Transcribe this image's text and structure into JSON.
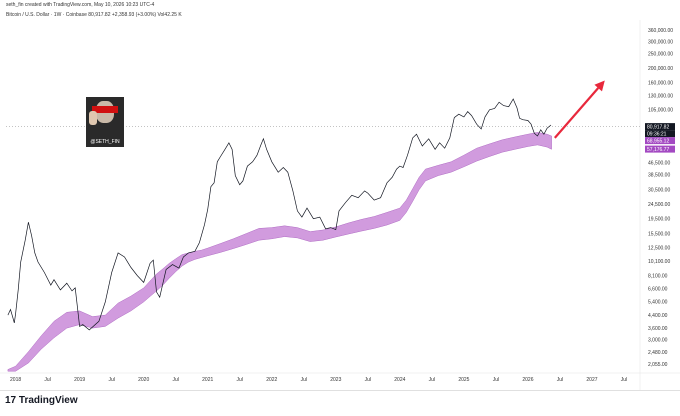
{
  "header": {
    "credit": "seth_fin created with TradingView.com, May 10, 2026 10:23 UTC-4",
    "symbol": "Bitcoin / U.S. Dollar · 1W · Coinbase 80,917.82 +2,358.93 (+3.00%) Vol42.25 K"
  },
  "avatar": {
    "label": "@SETH_FIN"
  },
  "footer": {
    "logo": "TradingView"
  },
  "colors": {
    "price": "#131722",
    "band": "#c98ad8",
    "arrow": "#e8283c",
    "price_label": "#131722",
    "band_label": "#a349c2"
  },
  "chart_data": {
    "type": "line",
    "title": "",
    "y_scale": "log",
    "x_ticks": [
      "2018",
      "Jul",
      "2019",
      "Jul",
      "2020",
      "Jul",
      "2021",
      "Jul",
      "2022",
      "Jul",
      "2023",
      "Jul",
      "2024",
      "Jul",
      "2025",
      "Jul",
      "2026",
      "Jul",
      "2027",
      "Jul"
    ],
    "y_ticks": [
      2055,
      2480,
      3000,
      3600,
      4400,
      5400,
      6600,
      8100,
      10100,
      12500,
      15500,
      19500,
      24500,
      30500,
      38500,
      46500,
      76000,
      105000,
      130000,
      160000,
      200000,
      250000,
      300000,
      360000
    ],
    "y_tick_labels": [
      "2,055.00",
      "2,480.00",
      "3,000.00",
      "3,600.00",
      "4,400.00",
      "5,400.00",
      "6,600.00",
      "8,100.00",
      "10,100.00",
      "12,500.00",
      "15,500.00",
      "19,500.00",
      "24,500.00",
      "30,500.00",
      "38,500.00",
      "46,500.00",
      "76,000.00",
      "105,000.00",
      "130,000.00",
      "160,000.00",
      "200,000.00",
      "250,000.00",
      "300,000.00",
      "360,000.00"
    ],
    "ylim": [
      1800,
      420000
    ],
    "xlim": [
      2017.85,
      2027.75
    ],
    "price_series": {
      "x": [
        2017.88,
        2017.92,
        2017.96,
        2017.98,
        2018.0,
        2018.04,
        2018.08,
        2018.15,
        2018.2,
        2018.25,
        2018.3,
        2018.35,
        2018.45,
        2018.55,
        2018.6,
        2018.7,
        2018.8,
        2018.88,
        2018.93,
        2018.96,
        2019.0,
        2019.05,
        2019.15,
        2019.3,
        2019.4,
        2019.5,
        2019.6,
        2019.7,
        2019.8,
        2019.9,
        2020.0,
        2020.1,
        2020.15,
        2020.2,
        2020.25,
        2020.35,
        2020.45,
        2020.55,
        2020.62,
        2020.7,
        2020.8,
        2020.87,
        2020.95,
        2021.0,
        2021.05,
        2021.1,
        2021.15,
        2021.2,
        2021.27,
        2021.33,
        2021.38,
        2021.43,
        2021.5,
        2021.55,
        2021.62,
        2021.7,
        2021.77,
        2021.83,
        2021.87,
        2021.92,
        2022.0,
        2022.1,
        2022.18,
        2022.25,
        2022.33,
        2022.4,
        2022.47,
        2022.55,
        2022.65,
        2022.75,
        2022.84,
        2022.92,
        2023.0,
        2023.05,
        2023.15,
        2023.25,
        2023.35,
        2023.45,
        2023.5,
        2023.6,
        2023.7,
        2023.8,
        2023.88,
        2023.95,
        2024.0,
        2024.05,
        2024.12,
        2024.2,
        2024.26,
        2024.35,
        2024.45,
        2024.55,
        2024.62,
        2024.7,
        2024.78,
        2024.85,
        2024.92,
        2025.0,
        2025.06,
        2025.12,
        2025.2,
        2025.27,
        2025.33,
        2025.4,
        2025.48,
        2025.55,
        2025.62,
        2025.7,
        2025.77,
        2025.83,
        2025.87,
        2025.92,
        2026.0,
        2026.05,
        2026.1,
        2026.15,
        2026.2,
        2026.25,
        2026.3,
        2026.36
      ],
      "y": [
        4400,
        4800,
        4200,
        3900,
        4500,
        6500,
        10000,
        14000,
        18500,
        15000,
        11500,
        10000,
        8500,
        7000,
        7600,
        6500,
        7200,
        6400,
        6700,
        5200,
        3700,
        3800,
        3500,
        4000,
        5400,
        8500,
        11500,
        10800,
        9200,
        8100,
        7300,
        9800,
        10300,
        6300,
        5800,
        8900,
        9600,
        9100,
        10800,
        11500,
        11800,
        13500,
        17800,
        22500,
        32000,
        34000,
        47000,
        51000,
        57000,
        63000,
        57000,
        38000,
        33000,
        35000,
        44000,
        47000,
        52000,
        61000,
        67000,
        57000,
        47000,
        40000,
        43000,
        40000,
        30000,
        22000,
        20000,
        23000,
        19500,
        20000,
        16700,
        17000,
        16500,
        22000,
        25000,
        28000,
        27000,
        30000,
        29000,
        26000,
        27000,
        34000,
        37000,
        42000,
        44000,
        43000,
        52000,
        68000,
        72000,
        60000,
        67000,
        57000,
        63000,
        58000,
        68000,
        93000,
        98000,
        94000,
        102000,
        96000,
        84000,
        78000,
        94000,
        105000,
        107000,
        118000,
        112000,
        110000,
        124000,
        108000,
        92000,
        90000,
        89000,
        84000,
        73000,
        70000,
        77000,
        72000,
        79000,
        83000
      ]
    },
    "band": {
      "x": [
        2017.88,
        2018.0,
        2018.2,
        2018.4,
        2018.6,
        2018.8,
        2019.0,
        2019.2,
        2019.4,
        2019.6,
        2019.8,
        2020.0,
        2020.2,
        2020.3,
        2020.4,
        2020.5,
        2020.6,
        2020.7,
        2020.8,
        2020.9,
        2021.0,
        2021.2,
        2021.4,
        2021.6,
        2021.8,
        2022.0,
        2022.2,
        2022.4,
        2022.6,
        2022.8,
        2023.0,
        2023.2,
        2023.4,
        2023.6,
        2023.8,
        2024.0,
        2024.1,
        2024.2,
        2024.3,
        2024.4,
        2024.6,
        2024.8,
        2025.0,
        2025.2,
        2025.4,
        2025.6,
        2025.8,
        2026.0,
        2026.15,
        2026.3,
        2026.37
      ],
      "upper": [
        1900,
        2000,
        2500,
        3200,
        4000,
        4600,
        4700,
        4300,
        4400,
        5300,
        5900,
        6700,
        8300,
        9000,
        9800,
        10500,
        11200,
        11500,
        11800,
        12000,
        12400,
        13300,
        14300,
        15500,
        16800,
        17000,
        17500,
        17000,
        16000,
        16400,
        17200,
        18300,
        19300,
        20200,
        21500,
        23000,
        26000,
        31000,
        37000,
        42000,
        44500,
        47000,
        52000,
        58000,
        62000,
        66000,
        69000,
        72000,
        74000,
        72000,
        70000
      ],
      "lower": [
        1850,
        1850,
        2100,
        2600,
        3100,
        3600,
        3800,
        3600,
        3700,
        4200,
        4700,
        5400,
        6400,
        7000,
        7800,
        8600,
        9400,
        10000,
        10400,
        10700,
        11000,
        11600,
        12300,
        13100,
        14000,
        14300,
        14800,
        14500,
        13700,
        14000,
        14700,
        15400,
        16100,
        16800,
        17700,
        19000,
        21500,
        25500,
        30500,
        35000,
        38000,
        40000,
        43500,
        47500,
        51000,
        54500,
        57000,
        59500,
        61000,
        59000,
        57000
      ]
    },
    "arrow": {
      "from": [
        2026.42,
        68000
      ],
      "to": [
        2027.2,
        165000
      ]
    },
    "current_price_line": 80917.82,
    "last_labels": [
      {
        "text": "80,917.82",
        "value": 80917.82,
        "kind": "price"
      },
      {
        "text": "09:36:21",
        "value": 76500,
        "kind": "timer"
      },
      {
        "text": "68,955.12",
        "value": 68955.12,
        "kind": "band_upper"
      },
      {
        "text": "57,176.77",
        "value": 57176.77,
        "kind": "band_lower"
      }
    ]
  }
}
